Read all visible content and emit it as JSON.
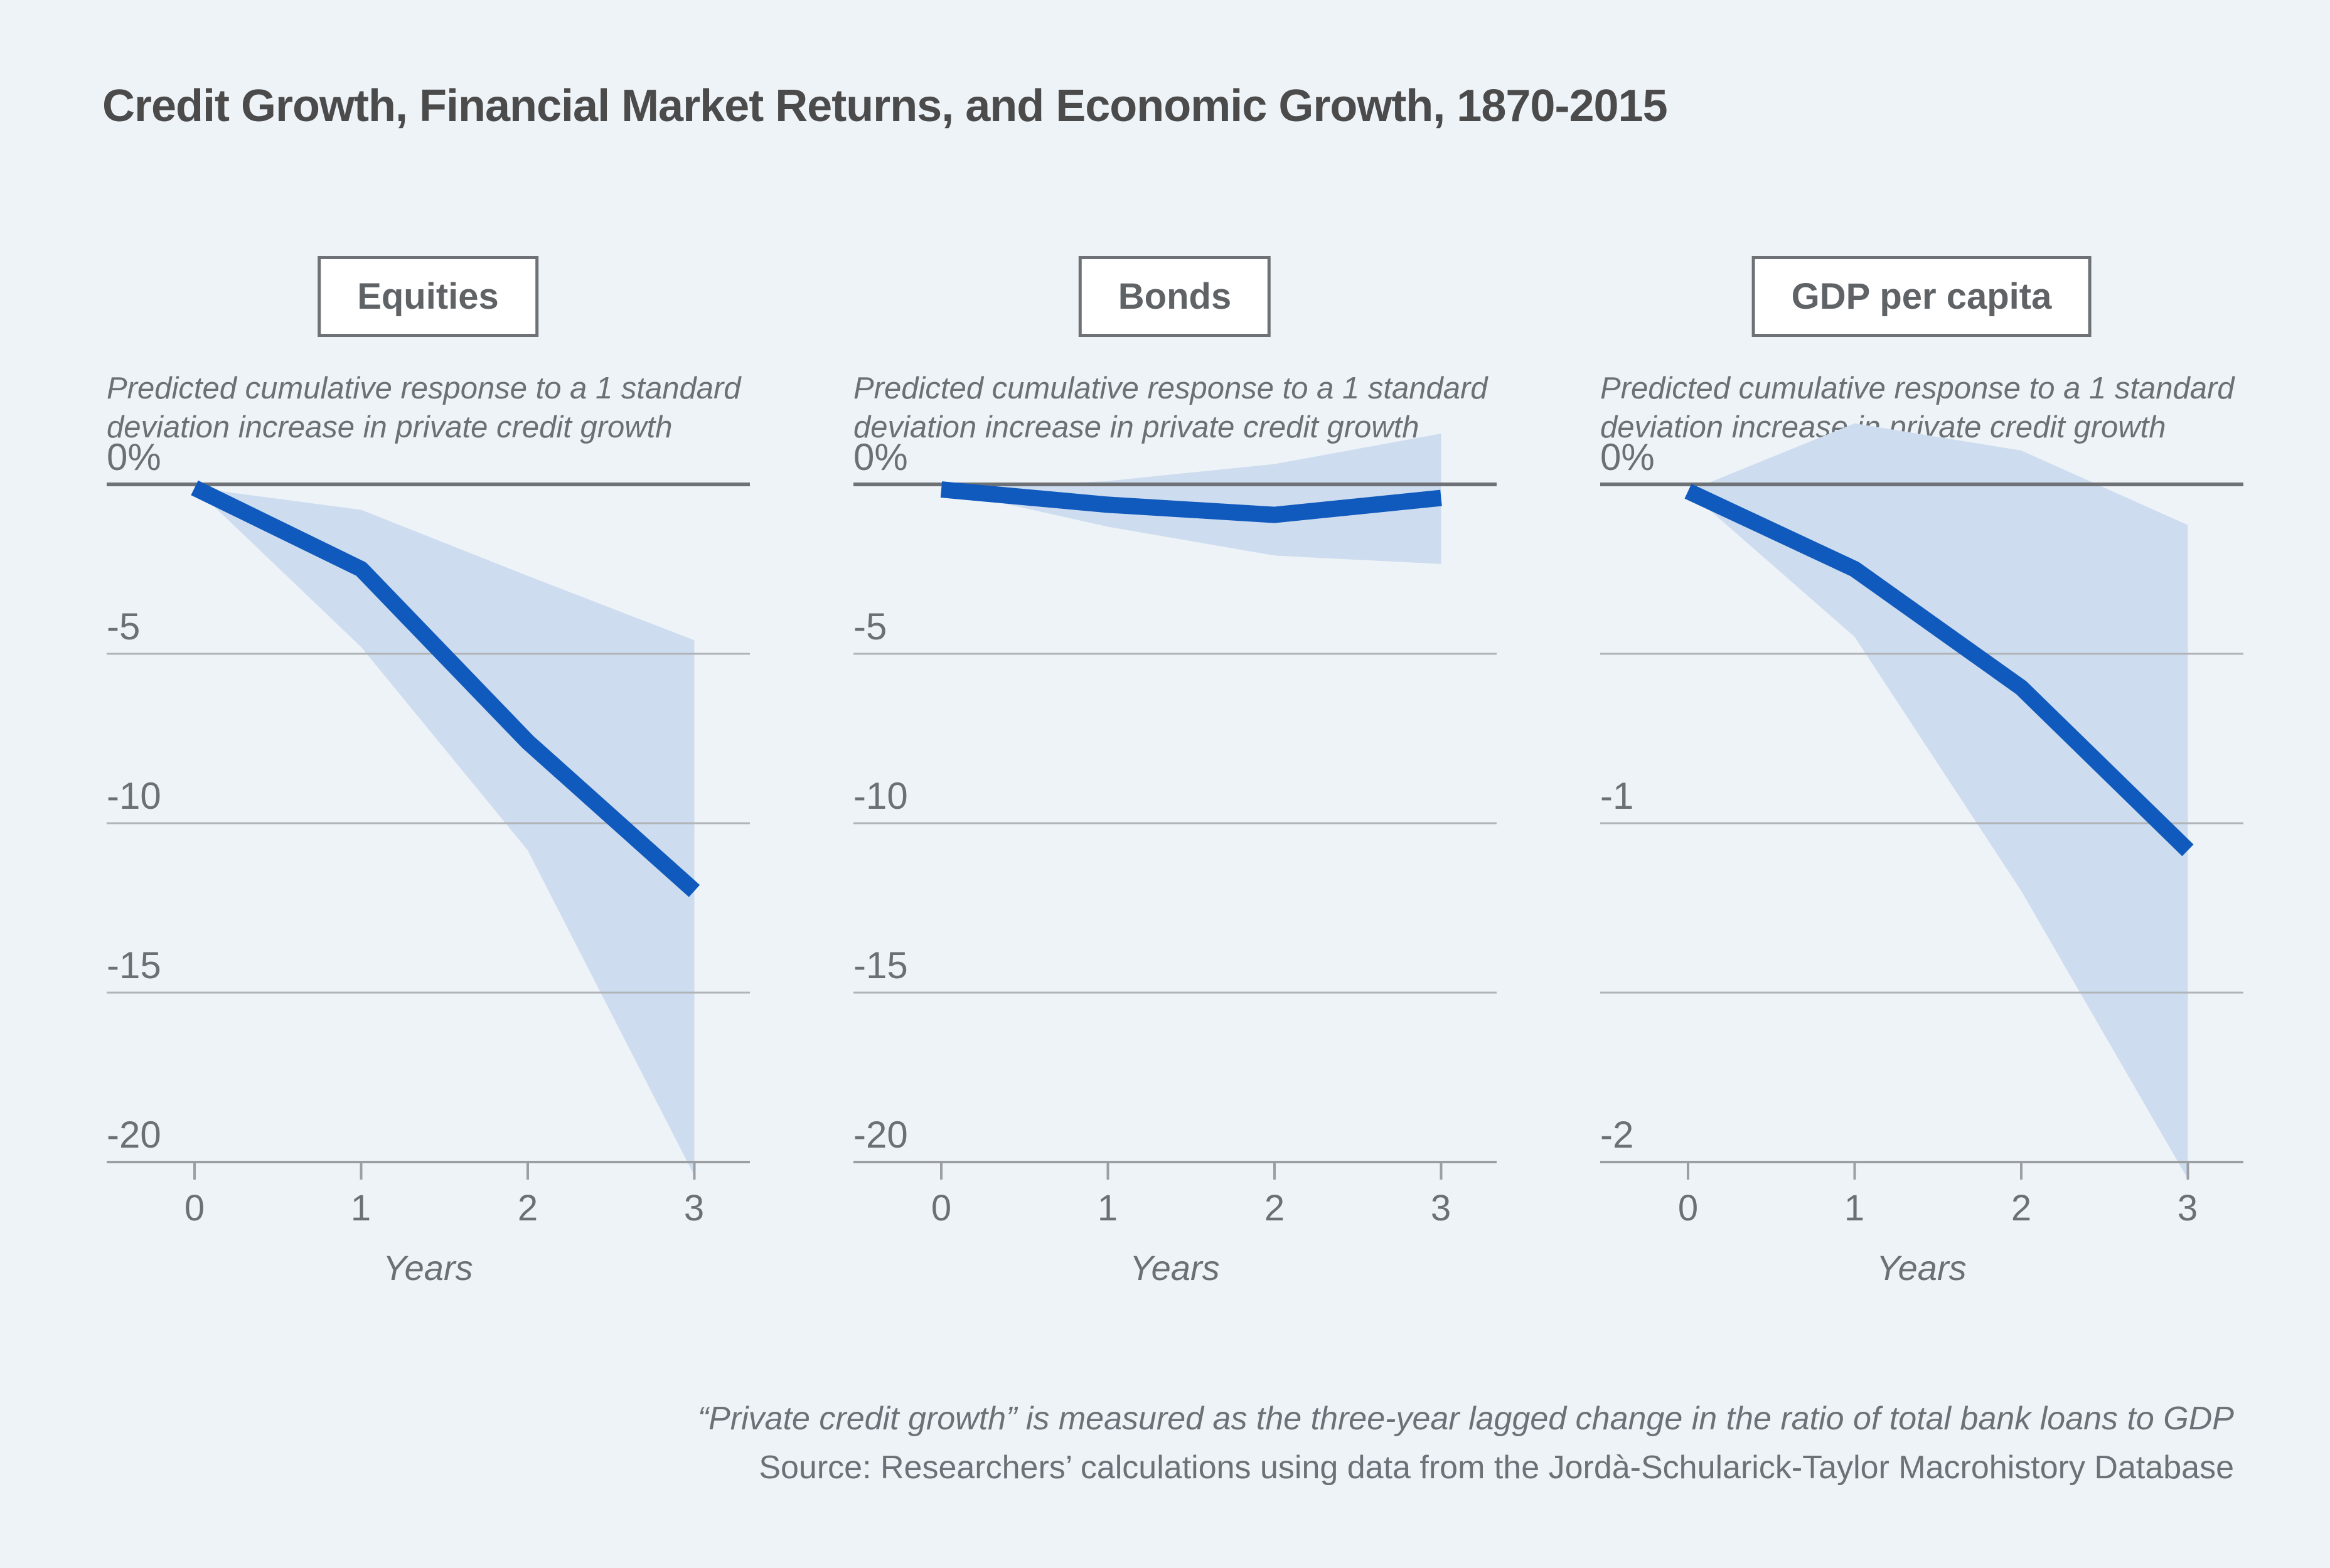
{
  "page": {
    "title": "Credit Growth, Financial Market Returns, and Economic Growth, 1870-2015",
    "footer_line1": "“Private credit growth” is measured as the three-year lagged change in the ratio of total bank loans to GDP",
    "footer_line2": "Source: Researchers’ calculations using data from the Jordà-Schularick-Taylor Macrohistory Database"
  },
  "colors": {
    "background": "#eef3f8",
    "line_blue": "#105abd",
    "band_blue": "#cddcef",
    "gridline": "#b1b5b8",
    "zero_line": "#6e7276",
    "bottom_axis": "#9b9fa2",
    "title_text": "#4b4b4b",
    "muted_text": "#6b7074"
  },
  "panels": [
    {
      "title": "Equities",
      "subtitle_line1": "Predicted cumulative response to a 1 standard",
      "subtitle_line2": "deviation increase in private credit growth",
      "y_tick_labels": [
        "0%",
        "-5",
        "-10",
        "-15",
        "-20"
      ],
      "x_tick_labels": [
        "0",
        "1",
        "2",
        "3"
      ],
      "x_axis_label": "Years"
    },
    {
      "title": "Bonds",
      "subtitle_line1": "Predicted cumulative response to a 1 standard",
      "subtitle_line2": "deviation increase in private credit growth",
      "y_tick_labels": [
        "0%",
        "-5",
        "-10",
        "-15",
        "-20"
      ],
      "x_tick_labels": [
        "0",
        "1",
        "2",
        "3"
      ],
      "x_axis_label": "Years"
    },
    {
      "title": "GDP per capita",
      "subtitle_line1": "Predicted cumulative response to a 1 standard",
      "subtitle_line2": "deviation increase in private credit growth",
      "y_tick_labels": [
        "0%",
        "",
        "-1",
        "",
        "-2"
      ],
      "x_tick_labels": [
        "0",
        "1",
        "2",
        "3"
      ],
      "x_axis_label": "Years"
    }
  ],
  "chart_data": [
    {
      "type": "line",
      "title": "Equities",
      "xlabel": "Years",
      "x": [
        0,
        1,
        2,
        3
      ],
      "ylim": [
        -20,
        0
      ],
      "y_gridlines": [
        0,
        -5,
        -10,
        -15,
        -20
      ],
      "units": "percent cumulative response",
      "series": [
        {
          "name": "point estimate",
          "values": [
            -0.1,
            -2.5,
            -7.6,
            -12.0
          ]
        },
        {
          "name": "confidence band upper",
          "values": [
            -0.1,
            -0.75,
            -2.7,
            -4.6
          ]
        },
        {
          "name": "confidence band lower",
          "values": [
            -0.1,
            -4.8,
            -10.8,
            -20.4
          ]
        }
      ]
    },
    {
      "type": "line",
      "title": "Bonds",
      "xlabel": "Years",
      "x": [
        0,
        1,
        2,
        3
      ],
      "ylim": [
        -20,
        0
      ],
      "y_gridlines": [
        0,
        -5,
        -10,
        -15,
        -20
      ],
      "units": "percent cumulative response",
      "series": [
        {
          "name": "point estimate",
          "values": [
            -0.15,
            -0.6,
            -0.9,
            -0.4
          ]
        },
        {
          "name": "confidence band upper",
          "values": [
            -0.15,
            0.1,
            0.6,
            1.5
          ]
        },
        {
          "name": "confidence band lower",
          "values": [
            -0.15,
            -1.25,
            -2.1,
            -2.35
          ]
        }
      ]
    },
    {
      "type": "line",
      "title": "GDP per capita",
      "xlabel": "Years",
      "x": [
        0,
        1,
        2,
        3
      ],
      "ylim": [
        -2,
        0
      ],
      "y_gridlines": [
        0,
        -0.5,
        -1,
        -1.5,
        -2
      ],
      "units": "percent cumulative response",
      "series": [
        {
          "name": "point estimate",
          "values": [
            -0.02,
            -0.25,
            -0.6,
            -1.08
          ]
        },
        {
          "name": "confidence band upper",
          "values": [
            -0.02,
            0.18,
            0.1,
            -0.12
          ]
        },
        {
          "name": "confidence band lower",
          "values": [
            -0.02,
            -0.45,
            -1.2,
            -2.05
          ]
        }
      ]
    }
  ]
}
